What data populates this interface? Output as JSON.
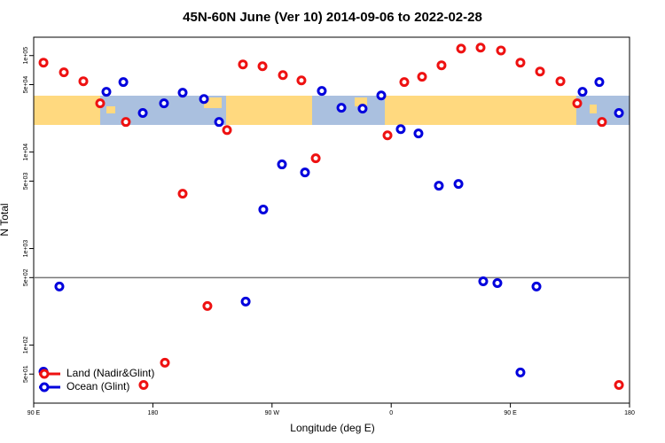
{
  "chart_data": {
    "type": "scatter",
    "title": "45N-60N June (Ver 10)   2014-09-06 to 2022-02-28",
    "xlabel": "Longitude (deg E)",
    "ylabel": "N Total",
    "xlim": [
      90,
      540
    ],
    "xticks": [
      {
        "value": 90,
        "label": "90 E"
      },
      {
        "value": 180,
        "label": "180"
      },
      {
        "value": 270,
        "label": "90 W"
      },
      {
        "value": 360,
        "label": "0"
      },
      {
        "value": 450,
        "label": "90 E"
      },
      {
        "value": 540,
        "label": "180"
      }
    ],
    "ylim": [
      25,
      155000
    ],
    "ylog": true,
    "yticks": [
      {
        "value": 50,
        "label": "5e+01"
      },
      {
        "value": 100,
        "label": "1e+02"
      },
      {
        "value": 500,
        "label": "5e+02"
      },
      {
        "value": 1000,
        "label": "1e+03"
      },
      {
        "value": 5000,
        "label": "5e+03"
      },
      {
        "value": 10000,
        "label": "1e+04"
      },
      {
        "value": 50000,
        "label": "5e+04"
      },
      {
        "value": 100000,
        "label": "1e+05"
      }
    ],
    "hline": 500,
    "legend": "lower left",
    "series": [
      {
        "name": "Land (Nadir&Glint)",
        "color": "#ee1111",
        "x": [
          97.4,
          112.8,
          127.5,
          140.2,
          159.6,
          173,
          189.1,
          202.5,
          221.2,
          236,
          248,
          262.8,
          278.2,
          292.2,
          303,
          357.2,
          369.9,
          383.3,
          398,
          412.8,
          427.5,
          442.9,
          457.6,
          472.4,
          487.8,
          500.5,
          519.2,
          532
        ],
        "values": [
          84500,
          67000,
          54200,
          32000,
          20500,
          38.6,
          65.6,
          3700,
          254,
          16900,
          81000,
          77600,
          62800,
          55300,
          8630,
          14900,
          53100,
          60300,
          79300,
          118000,
          121000,
          113000,
          84500,
          68400,
          54200,
          32000,
          20500,
          38.6
        ]
      },
      {
        "name": "Ocean (Glint)",
        "color": "#0000dd",
        "x": [
          97.4,
          109.4,
          144.9,
          157.7,
          172.4,
          188.4,
          202.5,
          218.6,
          230,
          250.1,
          263.4,
          277.5,
          294.9,
          307.6,
          322.4,
          338.4,
          352.5,
          367.2,
          380.6,
          396,
          410.8,
          429.5,
          440.2,
          457.6,
          469.7,
          504.5,
          517.2,
          532
        ],
        "values": [
          53,
          404,
          42100,
          53100,
          25400,
          32000,
          41200,
          35500,
          20500,
          282,
          2540,
          7450,
          6150,
          43000,
          28800,
          28200,
          38600,
          17300,
          15600,
          4480,
          4670,
          458,
          439,
          52,
          404,
          42100,
          53100,
          25400
        ]
      }
    ]
  }
}
